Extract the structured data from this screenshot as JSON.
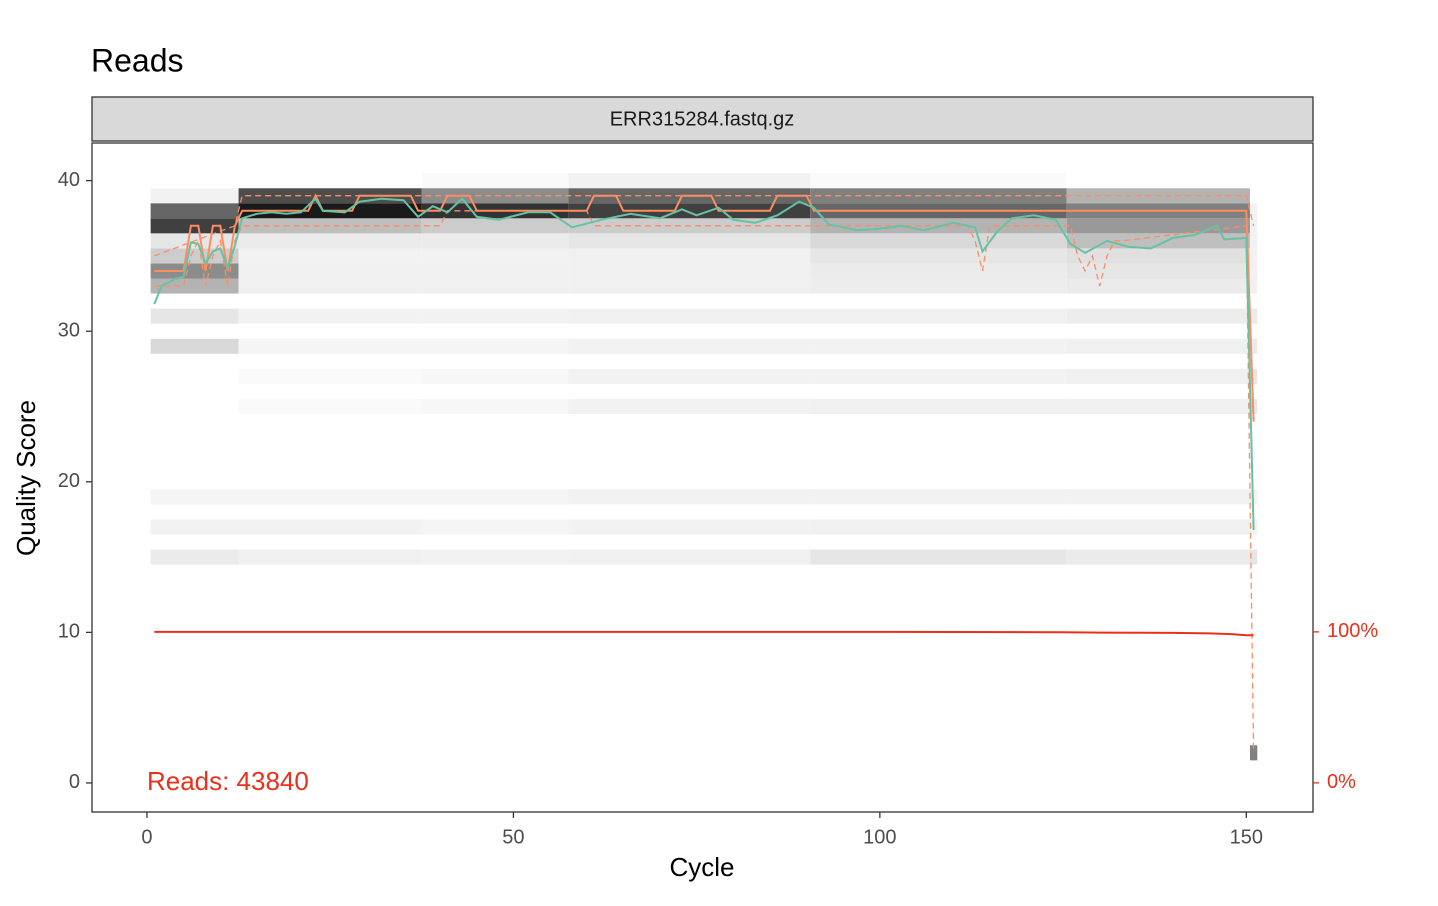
{
  "chart_data": {
    "type": "line",
    "title": "Reads",
    "facet_label": "ERR315284.fastq.gz",
    "x_label": "Cycle",
    "y_label": "Quality Score",
    "annotation": "Reads:  43840",
    "xlim": [
      -7.5,
      159.1
    ],
    "ylim": [
      -1.93,
      42.5
    ],
    "y2lim": [
      -19.3,
      423.8
    ],
    "xticks": [
      0,
      50,
      100,
      150
    ],
    "yticks": [
      0,
      10,
      20,
      30,
      40
    ],
    "y2ticks": [
      {
        "value": 0,
        "label": "0%"
      },
      {
        "value": 100,
        "label": "100%"
      }
    ],
    "y2_color": "#e8311a",
    "heatmap": {
      "color_low": "#ffffff",
      "color_high": "#000000",
      "cycle_bins": [
        0.5,
        12.5,
        37.5,
        57.5,
        90.5,
        125.5,
        150.5,
        151.5
      ],
      "scores": [
        2,
        15,
        17,
        19,
        25,
        27,
        29,
        31,
        33,
        34,
        35,
        36,
        37,
        38,
        39,
        40
      ],
      "values": [
        [
          0,
          0,
          0,
          0,
          0,
          0,
          0.5
        ],
        [
          0.08,
          0.06,
          0.05,
          0.06,
          0.1,
          0.08,
          0.1
        ],
        [
          0.05,
          0.05,
          0.04,
          0.05,
          0.06,
          0.06,
          0.05
        ],
        [
          0.04,
          0.04,
          0.04,
          0.05,
          0.05,
          0.05,
          0.05
        ],
        [
          0,
          0.02,
          0.03,
          0.05,
          0.06,
          0.06,
          0.1
        ],
        [
          0,
          0.02,
          0.03,
          0.05,
          0.05,
          0.06,
          0.1
        ],
        [
          0.15,
          0.04,
          0.04,
          0.05,
          0.05,
          0.06,
          0.08
        ],
        [
          0.1,
          0.05,
          0.05,
          0.06,
          0.06,
          0.07,
          0.08
        ],
        [
          0.3,
          0.06,
          0.06,
          0.06,
          0.07,
          0.08,
          0.06
        ],
        [
          0.45,
          0.06,
          0.06,
          0.06,
          0.08,
          0.1,
          0.05
        ],
        [
          0.2,
          0.05,
          0.05,
          0.06,
          0.1,
          0.12,
          0.05
        ],
        [
          0.1,
          0.08,
          0.08,
          0.1,
          0.15,
          0.25,
          0.05
        ],
        [
          0.75,
          0.25,
          0.2,
          0.2,
          0.3,
          0.4,
          0.05
        ],
        [
          0.6,
          0.9,
          0.8,
          0.75,
          0.6,
          0.5,
          0.05
        ],
        [
          0.05,
          0.7,
          0.45,
          0.6,
          0.5,
          0.3,
          0
        ],
        [
          0,
          0,
          0.02,
          0.05,
          0.02,
          0,
          0
        ]
      ]
    },
    "series": [
      {
        "color": "#fc8d62",
        "dashed": true,
        "x": [
          1,
          5,
          6,
          7,
          8,
          9,
          10,
          11,
          12,
          13,
          40,
          41,
          60,
          61,
          90,
          91,
          112,
          113,
          114,
          115,
          126,
          127,
          128,
          129,
          130,
          131,
          132,
          133,
          150,
          151
        ],
        "values": [
          33,
          33,
          35,
          36,
          33,
          35,
          36,
          33,
          36,
          37,
          37,
          38,
          38,
          37,
          37,
          37,
          37,
          36,
          34,
          37,
          37,
          35,
          34,
          35,
          33,
          35,
          36,
          36,
          37,
          2
        ]
      },
      {
        "color": "#fc8d62",
        "dashed": true,
        "x": [
          1,
          12,
          13,
          60,
          61,
          150,
          151
        ],
        "values": [
          35,
          37,
          39,
          39,
          39,
          39,
          37
        ]
      },
      {
        "color": "#fc8d62",
        "dashed": false,
        "x": [
          1,
          5,
          6,
          7,
          8,
          9,
          10,
          11,
          12,
          13,
          22,
          23,
          24,
          28,
          29,
          36,
          37,
          40,
          41,
          44,
          45,
          60,
          61,
          64,
          65,
          72,
          73,
          77,
          78,
          85,
          86,
          90,
          91,
          150,
          151
        ],
        "values": [
          34,
          34,
          37,
          37,
          34,
          37,
          37,
          34,
          37,
          38,
          38,
          39,
          38,
          38,
          39,
          39,
          38,
          38,
          39,
          39,
          38,
          38,
          39,
          39,
          38,
          38,
          39,
          39,
          38,
          38,
          39,
          39,
          38,
          38,
          24
        ]
      },
      {
        "color": "#66c2a5",
        "dashed": false,
        "x": [
          1,
          2,
          4,
          5,
          6,
          7,
          8,
          9,
          10,
          11,
          12,
          13,
          15,
          17,
          19,
          21,
          23,
          24,
          27,
          29,
          32,
          35,
          37,
          39,
          41,
          43,
          45,
          48,
          52,
          55,
          58,
          62,
          66,
          70,
          73,
          75,
          78,
          80,
          83,
          86,
          89,
          91,
          93,
          97,
          100,
          103,
          106,
          110,
          113,
          114,
          116,
          118,
          121,
          124,
          126,
          128,
          131,
          134,
          137,
          140,
          143,
          146,
          147,
          150,
          151
        ],
        "values": [
          31.8,
          33,
          33.5,
          33.6,
          35.9,
          35.8,
          34.5,
          35.3,
          35.5,
          34.2,
          35.7,
          37.5,
          37.8,
          37.9,
          37.8,
          37.9,
          38.8,
          38,
          37.9,
          38.6,
          38.8,
          38.7,
          37.6,
          38.3,
          37.9,
          38.8,
          37.6,
          37.4,
          37.9,
          37.9,
          36.9,
          37.4,
          37.8,
          37.5,
          38.1,
          37.7,
          38.2,
          37.4,
          37.2,
          37.7,
          38.6,
          38.2,
          37.1,
          36.7,
          36.8,
          37,
          36.7,
          37.2,
          36.9,
          35.3,
          36.6,
          37.5,
          37.7,
          37.4,
          35.8,
          35.2,
          36,
          35.6,
          35.5,
          36.2,
          36.4,
          37,
          36.1,
          36.2,
          16.8
        ]
      },
      {
        "color": "#e8311a",
        "dashed": false,
        "axis": "y2",
        "x": [
          1,
          100,
          125,
          130,
          140,
          145,
          148,
          150,
          151
        ],
        "values": [
          100,
          100,
          99.8,
          99.5,
          99.3,
          99,
          98.5,
          97.8,
          97.8
        ]
      }
    ]
  }
}
